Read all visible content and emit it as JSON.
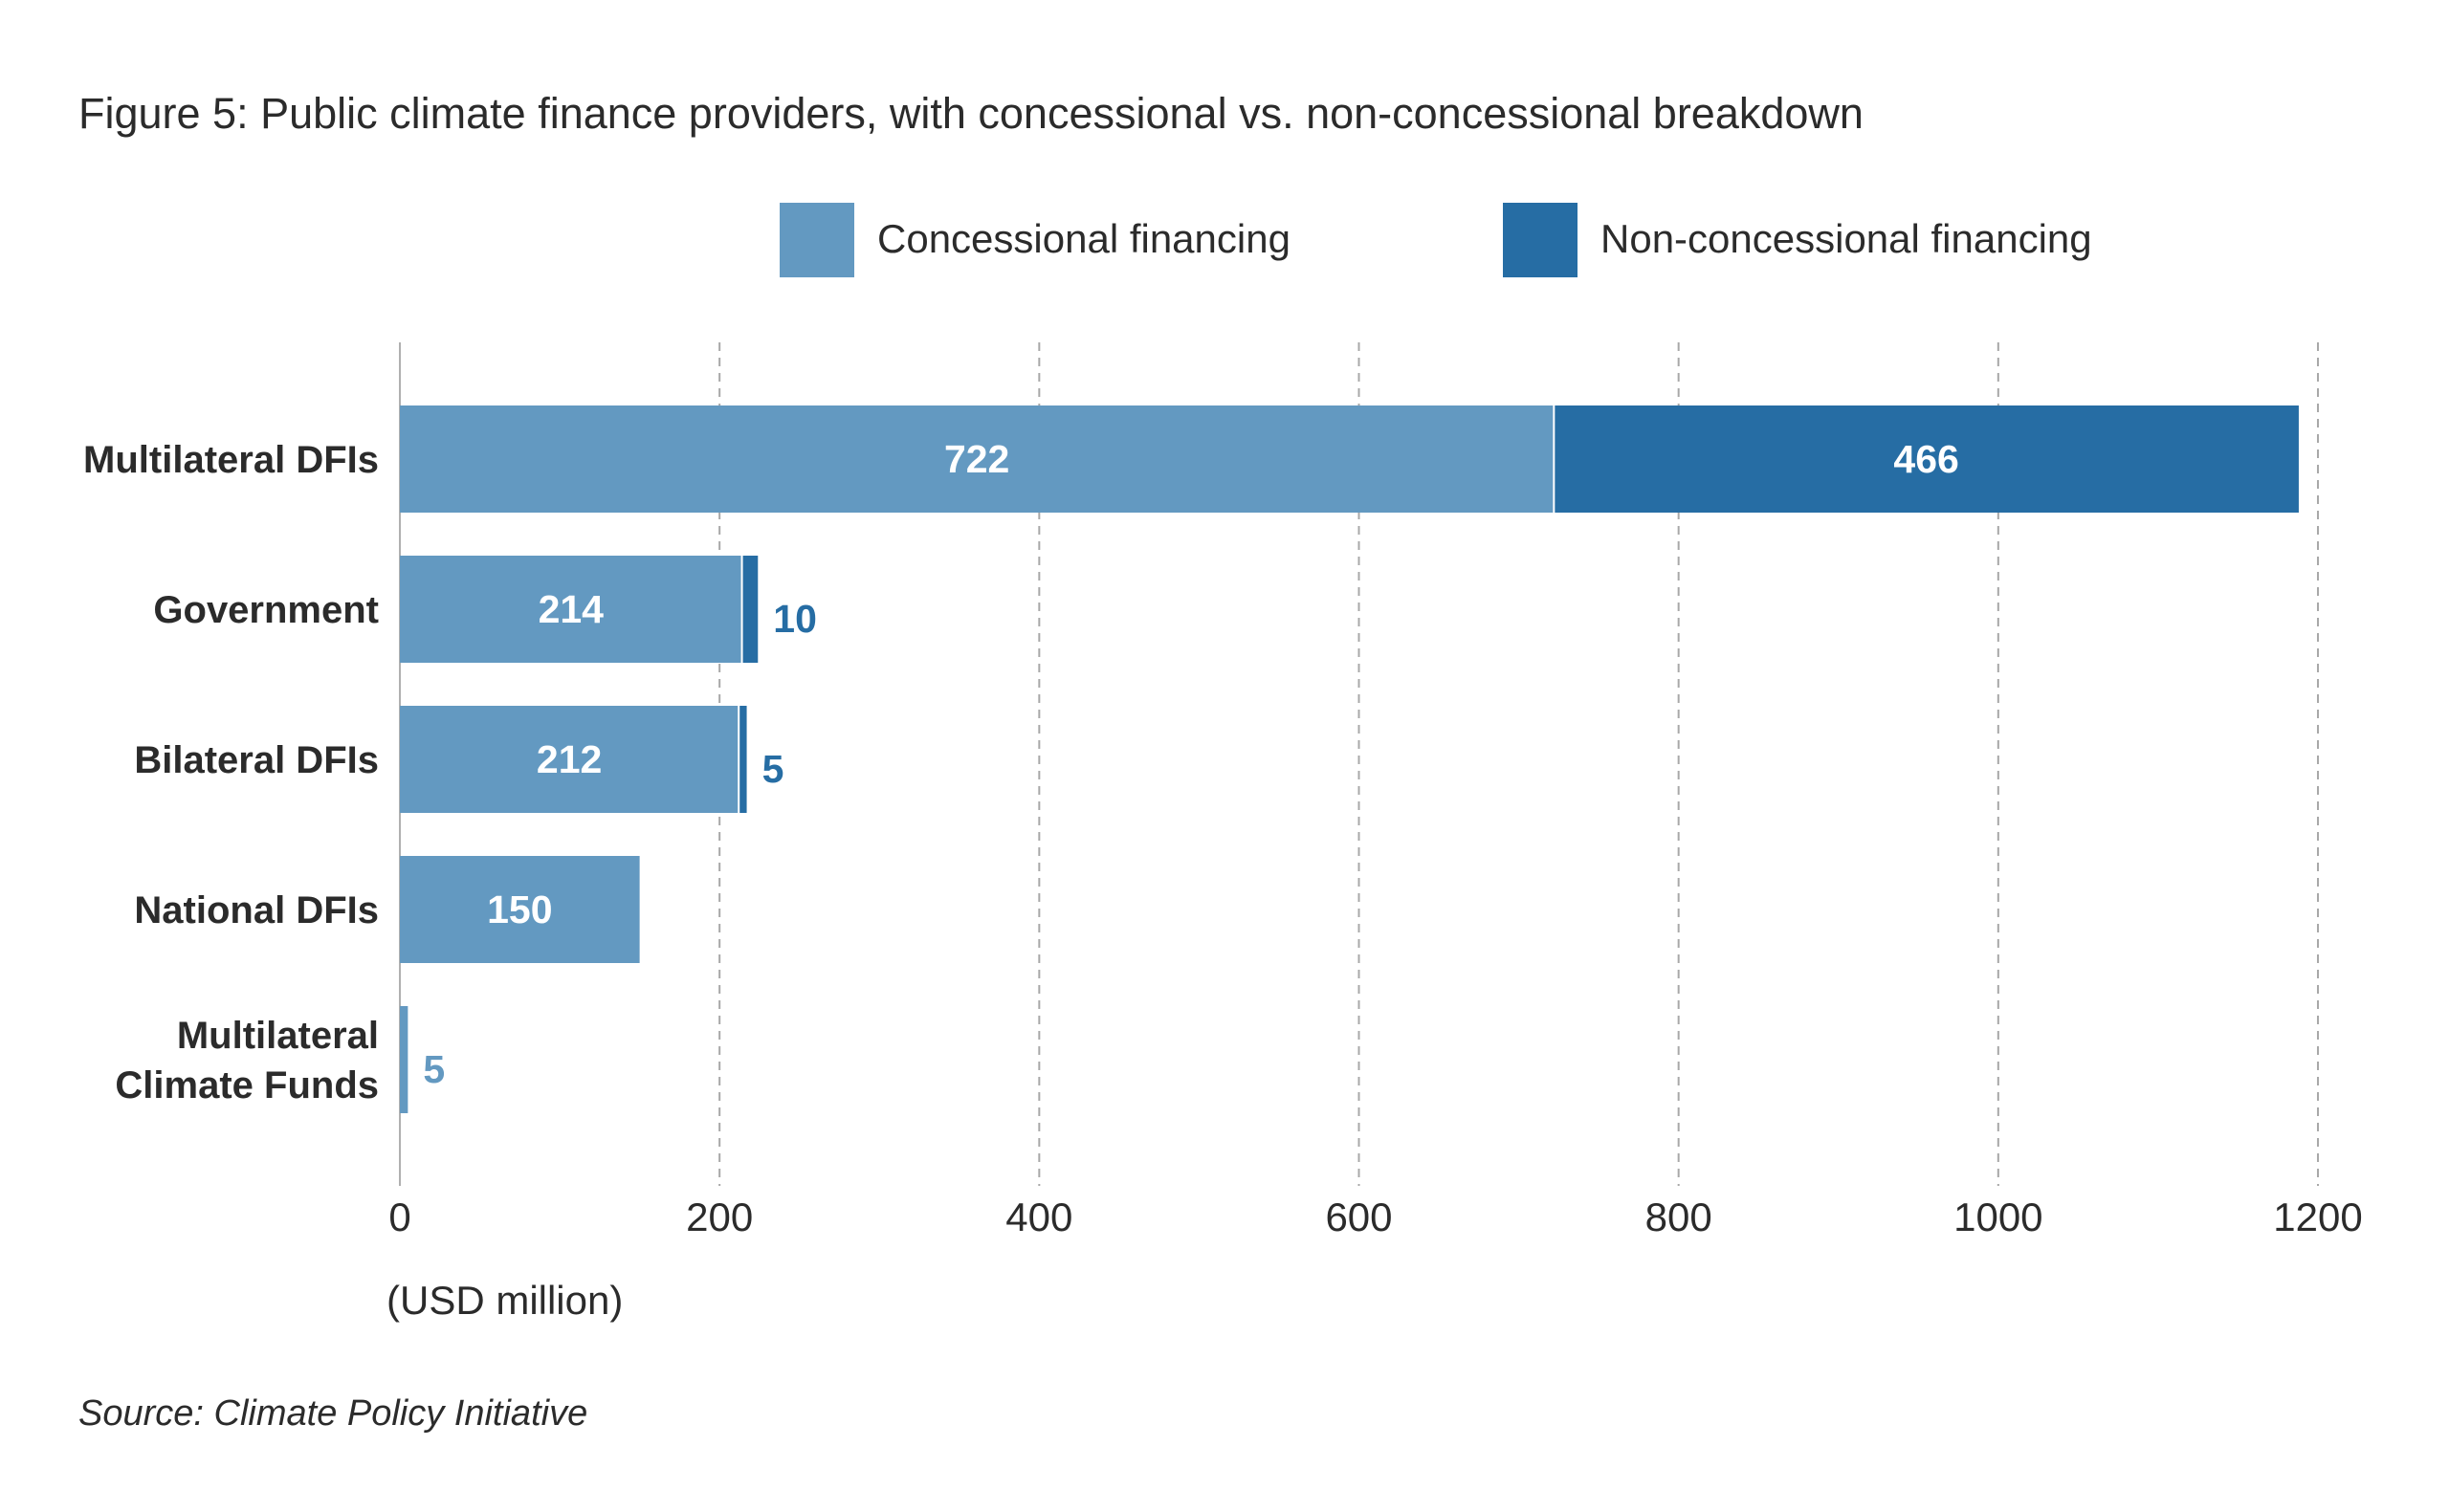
{
  "figure": {
    "title": "Figure 5: Public climate finance providers, with concessional vs. non-concessional breakdown",
    "source": "Source: Climate Policy Initiative"
  },
  "colors": {
    "concessional": "#6399c1",
    "non_concessional": "#266da4",
    "text": "#2b2b2b",
    "grid": "#a8a8a8"
  },
  "chart_data": {
    "type": "bar",
    "orientation": "horizontal",
    "stacked": true,
    "title": "Figure 5: Public climate finance providers, with concessional vs. non-concessional breakdown",
    "xlabel": "(USD million)",
    "ylabel": "",
    "xlim": [
      0,
      1200
    ],
    "xticks": [
      0,
      200,
      400,
      600,
      800,
      1000,
      1200
    ],
    "grid": "vertical dashed",
    "legend_position": "top",
    "categories": [
      [
        "Multilateral DFIs"
      ],
      [
        "Government"
      ],
      [
        "Bilateral DFIs"
      ],
      [
        "National DFIs"
      ],
      [
        "Multilateral",
        "Climate Funds"
      ]
    ],
    "series": [
      {
        "name": "Concessional financing",
        "color_key": "concessional",
        "values": [
          722,
          214,
          212,
          150,
          5
        ]
      },
      {
        "name": "Non-concessional financing",
        "color_key": "non_concessional",
        "values": [
          466,
          10,
          5,
          0,
          0
        ]
      }
    ]
  }
}
